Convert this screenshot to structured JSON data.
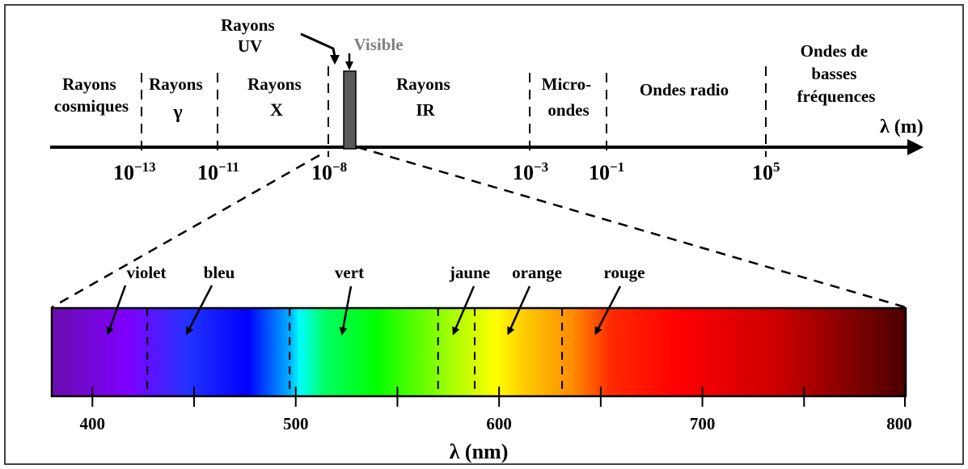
{
  "top_scale": {
    "axis_label": "λ (m)",
    "ticks": [
      {
        "base": "10",
        "exp": "−13"
      },
      {
        "base": "10",
        "exp": "−11"
      },
      {
        "base": "10",
        "exp": "−8"
      },
      {
        "base": "10",
        "exp": "−3"
      },
      {
        "base": "10",
        "exp": "−1"
      },
      {
        "base": "10",
        "exp": "5"
      }
    ],
    "regions": [
      {
        "lines": [
          "Rayons",
          "cosmiques"
        ]
      },
      {
        "lines": [
          "Rayons",
          "γ"
        ]
      },
      {
        "lines": [
          "Rayons",
          "X"
        ]
      },
      {
        "lines": [
          "Rayons",
          "UV"
        ]
      },
      {
        "lines": [
          "Visible"
        ]
      },
      {
        "lines": [
          "Rayons",
          "IR"
        ]
      },
      {
        "lines": [
          "Micro-",
          "ondes"
        ]
      },
      {
        "lines": [
          "Ondes radio"
        ]
      },
      {
        "lines": [
          "Ondes de",
          "basses",
          "fréquences"
        ]
      }
    ],
    "visible_label_color": "#808080",
    "visible_bar_color": "#5a5a5a"
  },
  "spectrum": {
    "axis_label": "λ (nm)",
    "range_nm": [
      380,
      800
    ],
    "tick_labels": [
      "400",
      "500",
      "600",
      "700",
      "800"
    ],
    "major_ticks_nm": [
      400,
      500,
      600,
      700,
      800
    ],
    "minor_ticks_nm": [
      450,
      550,
      650,
      750
    ],
    "boundaries_nm": [
      427,
      497,
      570,
      588,
      631
    ],
    "colors": [
      {
        "label": "violet",
        "point_nm": 408
      },
      {
        "label": "bleu",
        "point_nm": 447
      },
      {
        "label": "vert",
        "point_nm": 523
      },
      {
        "label": "jaune",
        "point_nm": 578
      },
      {
        "label": "orange",
        "point_nm": 605
      },
      {
        "label": "rouge",
        "point_nm": 648
      }
    ]
  }
}
